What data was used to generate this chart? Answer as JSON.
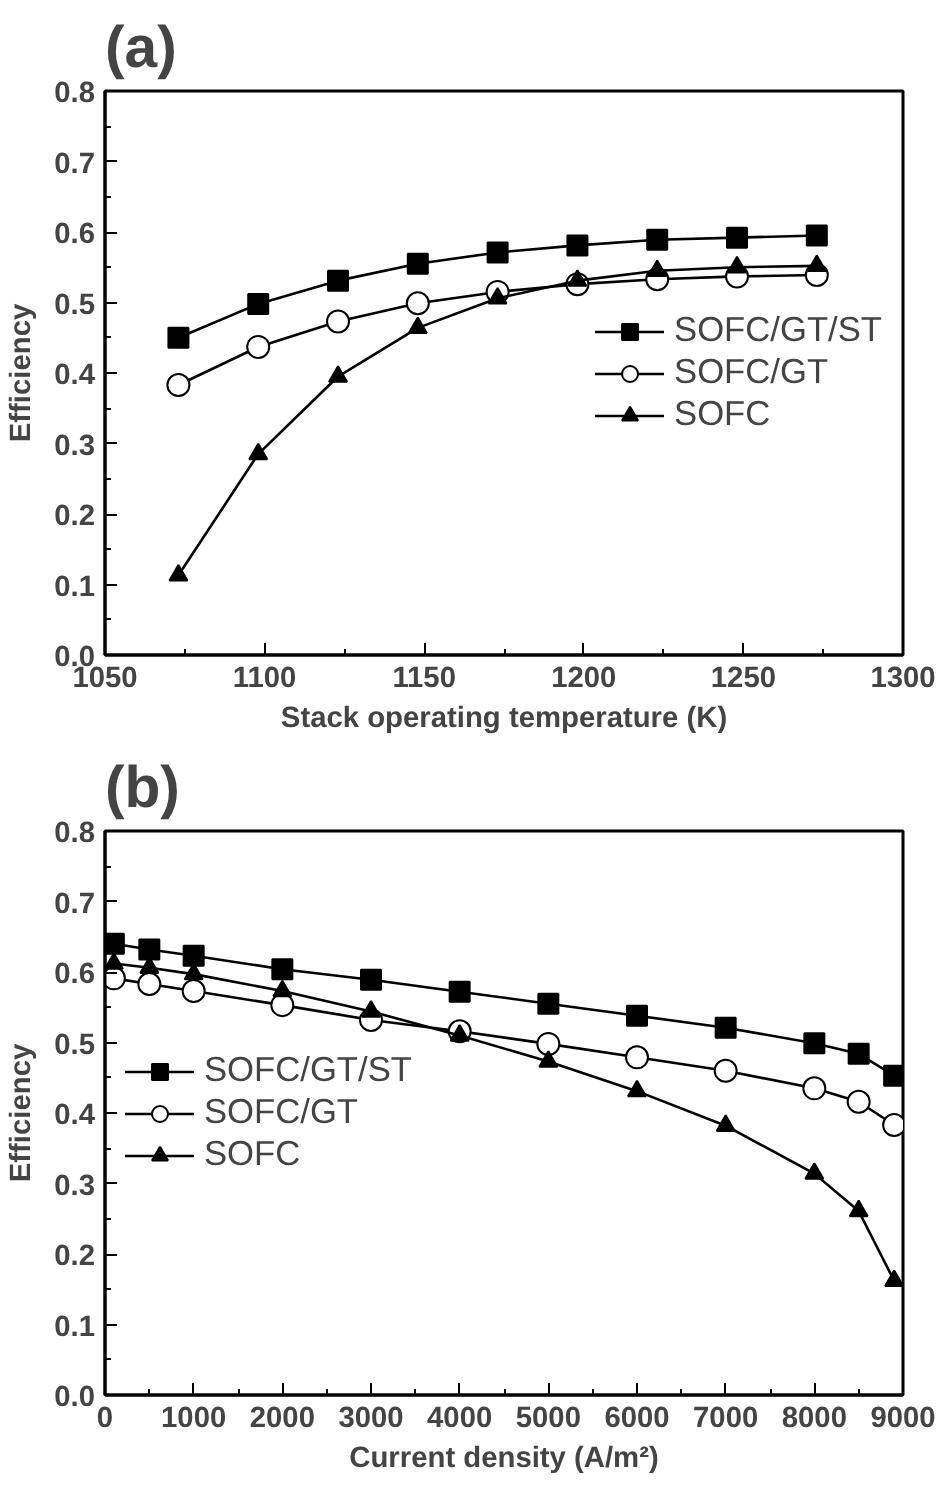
{
  "chart_data": [
    {
      "type": "line",
      "title": "(a)",
      "xlabel": "Stack operating temperature (K)",
      "ylabel": "Efficiency",
      "x": [
        1073,
        1098,
        1123,
        1148,
        1173,
        1198,
        1223,
        1248,
        1273
      ],
      "xlim": [
        1050,
        1300
      ],
      "xticks": [
        1050,
        1100,
        1150,
        1200,
        1250,
        1300
      ],
      "ylim": [
        0,
        0.8
      ],
      "yticks": [
        {
          "value": 0,
          "label": "0.0"
        },
        0.1,
        0.2,
        0.3,
        0.4,
        0.5,
        0.6,
        0.7,
        0.8
      ],
      "grid": false,
      "legend": "right",
      "line_style": "solid",
      "series": [
        {
          "name": "SOFC/GT/ST",
          "color": "#000000",
          "marker": "square",
          "values": [
            0.45,
            0.498,
            0.531,
            0.555,
            0.571,
            0.581,
            0.589,
            0.592,
            0.595
          ]
        },
        {
          "name": "SOFC/GT",
          "color": "#000000",
          "marker": "circle",
          "values": [
            0.383,
            0.437,
            0.473,
            0.499,
            0.515,
            0.526,
            0.533,
            0.537,
            0.539
          ]
        },
        {
          "name": "SOFC",
          "color": "#000000",
          "marker": "triangle",
          "values": [
            0.113,
            0.285,
            0.395,
            0.464,
            0.506,
            0.531,
            0.545,
            0.55,
            0.552
          ]
        }
      ]
    },
    {
      "type": "line",
      "title": "(b)",
      "xlabel": "Current density (A/m²)",
      "ylabel": "Efficiency",
      "x": [
        100,
        500,
        1000,
        2000,
        3000,
        4000,
        5000,
        6000,
        7000,
        8000,
        8500,
        8900
      ],
      "xlim": [
        0,
        9000
      ],
      "xticks": [
        0,
        1000,
        2000,
        3000,
        4000,
        5000,
        6000,
        7000,
        8000,
        9000
      ],
      "ylim": [
        0,
        0.8
      ],
      "yticks": [
        {
          "value": 0,
          "label": "0.0"
        },
        0.1,
        0.2,
        0.3,
        0.4,
        0.5,
        0.6,
        0.7,
        0.8
      ],
      "grid": false,
      "legend": "left",
      "line_style": "solid",
      "series": [
        {
          "name": "SOFC/GT/ST",
          "color": "#000000",
          "marker": "square",
          "values": [
            0.64,
            0.632,
            0.623,
            0.604,
            0.589,
            0.572,
            0.555,
            0.538,
            0.521,
            0.499,
            0.484,
            0.453
          ]
        },
        {
          "name": "SOFC/GT",
          "color": "#000000",
          "marker": "circle",
          "values": [
            0.591,
            0.583,
            0.573,
            0.553,
            0.532,
            0.516,
            0.498,
            0.479,
            0.46,
            0.435,
            0.416,
            0.383
          ]
        },
        {
          "name": "SOFC",
          "color": "#000000",
          "marker": "triangle",
          "values": [
            0.612,
            0.606,
            0.597,
            0.573,
            0.544,
            0.51,
            0.473,
            0.431,
            0.382,
            0.314,
            0.261,
            0.162
          ]
        }
      ]
    }
  ]
}
